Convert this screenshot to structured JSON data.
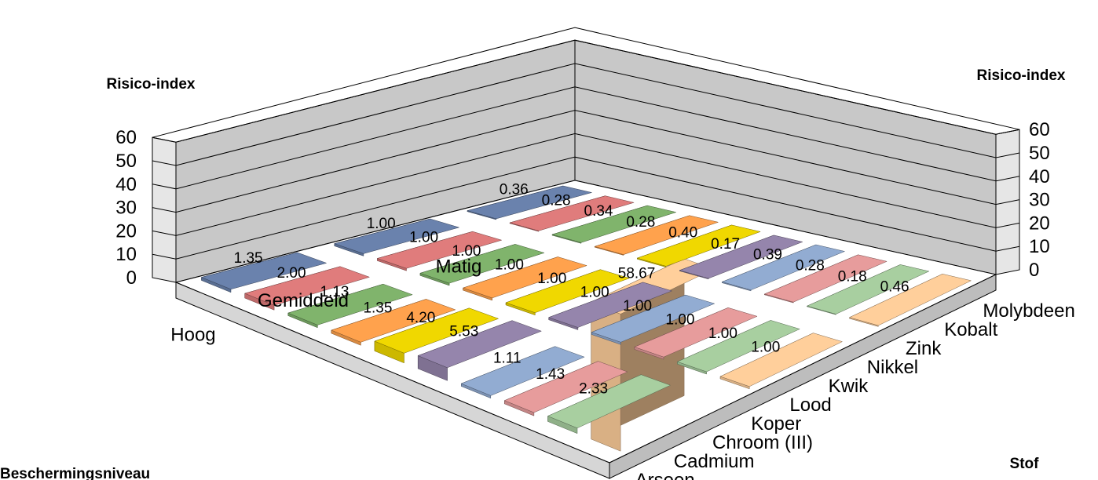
{
  "chart_data": {
    "type": "bar",
    "subtype": "3d-column-grid",
    "y_axis_label_left": "Risico-index",
    "y_axis_label_right": "Risico-index",
    "depth_axis_label": "Beschermingsniveau",
    "x_axis_label": "Stof",
    "ylim": [
      0,
      60
    ],
    "yticks": [
      "0",
      "10",
      "20",
      "30",
      "40",
      "50",
      "60"
    ],
    "grid": true,
    "categories": [
      "Arseen",
      "Cadmium",
      "Chroom (III)",
      "Koper",
      "Lood",
      "Kwik",
      "Nikkel",
      "Zink",
      "Kobalt",
      "Molybdeen"
    ],
    "series": [
      {
        "name": "Hoog",
        "values": [
          1.35,
          2.0,
          1.13,
          1.35,
          4.2,
          5.53,
          1.11,
          1.43,
          2.33,
          58.67
        ],
        "labels": [
          "1.35",
          "2.00",
          "1.13",
          "1.35",
          "4.20",
          "5.53",
          "1.11",
          "1.43",
          "2.33",
          "58.67"
        ]
      },
      {
        "name": "Gemiddeld",
        "values": [
          1.0,
          1.0,
          1.0,
          1.0,
          1.0,
          1.0,
          1.0,
          1.0,
          1.0,
          1.0
        ],
        "labels": [
          "1.00",
          "1.00",
          "1.00",
          "1.00",
          "1.00",
          "1.00",
          "1.00",
          "1.00",
          "1.00",
          "1.00"
        ]
      },
      {
        "name": "Matig",
        "values": [
          0.36,
          0.28,
          0.34,
          0.28,
          0.4,
          0.17,
          0.39,
          0.28,
          0.18,
          0.46
        ],
        "labels": [
          "0.36",
          "0.28",
          "0.34",
          "0.28",
          "0.40",
          "0.17",
          "0.39",
          "0.28",
          "0.18",
          "0.46"
        ]
      }
    ],
    "colors": [
      "#6a82ad",
      "#e07c7c",
      "#80b46c",
      "#ffa24d",
      "#f0d800",
      "#9585ac",
      "#92acd2",
      "#e79c9c",
      "#a8cfa0",
      "#ffcf9b"
    ]
  }
}
